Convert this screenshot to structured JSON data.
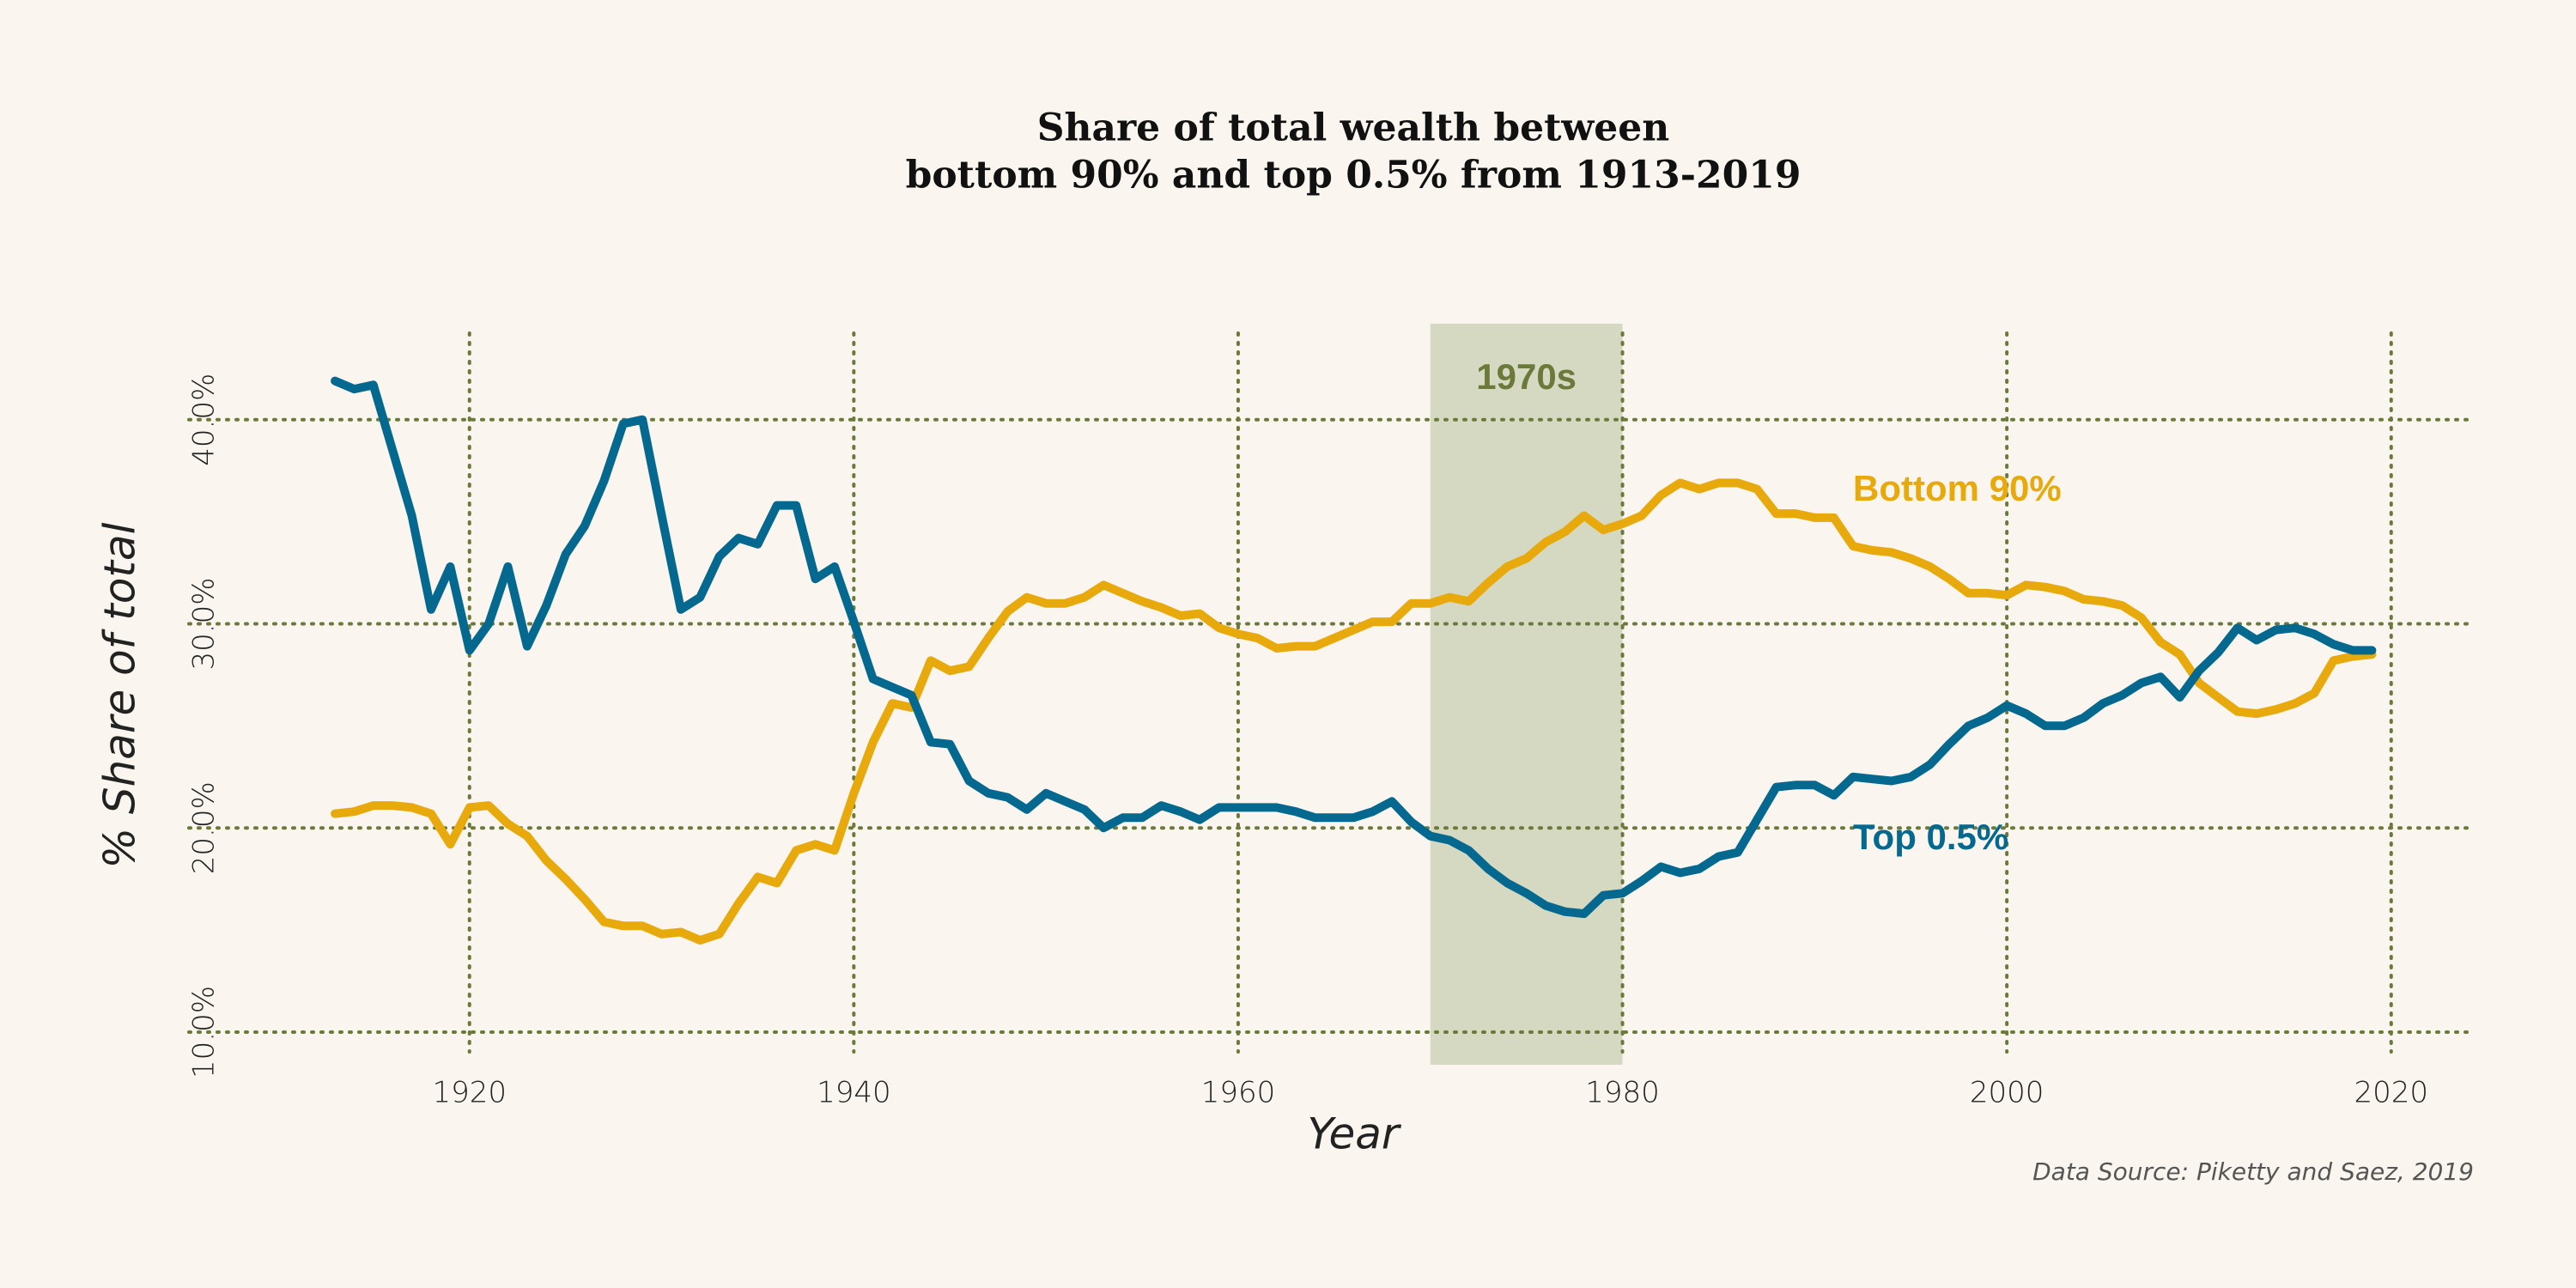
{
  "chart_data": {
    "type": "line",
    "title": [
      "Share of total wealth between",
      "bottom 90% and top 0.5% from 1913-2019"
    ],
    "y_label": "% Share of total",
    "x_label": "Year",
    "source": "Data Source: Piketty and Saez, 2019",
    "highlight": {
      "label": "1970s",
      "x": [
        1970,
        1980
      ],
      "color": "#d5d9c2"
    },
    "x": [
      1913,
      1914,
      1915,
      1916,
      1917,
      1918,
      1919,
      1920,
      1921,
      1922,
      1923,
      1924,
      1925,
      1926,
      1927,
      1928,
      1929,
      1930,
      1931,
      1932,
      1933,
      1934,
      1935,
      1936,
      1937,
      1938,
      1939,
      1940,
      1941,
      1942,
      1943,
      1944,
      1945,
      1946,
      1947,
      1948,
      1949,
      1950,
      1951,
      1952,
      1953,
      1954,
      1955,
      1956,
      1957,
      1958,
      1959,
      1960,
      1961,
      1962,
      1963,
      1964,
      1965,
      1966,
      1967,
      1968,
      1969,
      1970,
      1971,
      1972,
      1973,
      1974,
      1975,
      1976,
      1977,
      1978,
      1979,
      1980,
      1981,
      1982,
      1983,
      1984,
      1985,
      1986,
      1987,
      1988,
      1989,
      1990,
      1991,
      1992,
      1993,
      1994,
      1995,
      1996,
      1997,
      1998,
      1999,
      2000,
      2001,
      2002,
      2003,
      2004,
      2005,
      2006,
      2007,
      2008,
      2009,
      2010,
      2011,
      2012,
      2013,
      2014,
      2015,
      2016,
      2017,
      2018,
      2019
    ],
    "series": [
      {
        "name": "Bottom 90%",
        "color": "#e8a90c",
        "values": [
          20.7,
          20.8,
          21.1,
          21.1,
          21.0,
          20.7,
          19.2,
          21.0,
          21.1,
          20.2,
          19.6,
          18.4,
          17.5,
          16.5,
          15.4,
          15.2,
          15.2,
          14.8,
          14.9,
          14.5,
          14.8,
          16.3,
          17.6,
          17.3,
          18.9,
          19.2,
          18.9,
          21.7,
          24.2,
          26.1,
          25.9,
          28.2,
          27.7,
          27.9,
          29.3,
          30.6,
          31.3,
          31.0,
          31.0,
          31.3,
          31.9,
          31.5,
          31.1,
          30.8,
          30.4,
          30.5,
          29.8,
          29.5,
          29.3,
          28.8,
          28.9,
          28.9,
          29.3,
          29.7,
          30.1,
          30.1,
          31.0,
          31.0,
          31.3,
          31.1,
          32.0,
          32.8,
          33.2,
          34.0,
          34.5,
          35.3,
          34.6,
          34.9,
          35.3,
          36.3,
          36.9,
          36.6,
          36.9,
          36.9,
          36.6,
          35.4,
          35.4,
          35.2,
          35.2,
          33.8,
          33.6,
          33.5,
          33.2,
          32.8,
          32.2,
          31.5,
          31.5,
          31.4,
          31.9,
          31.8,
          31.6,
          31.2,
          31.1,
          30.9,
          30.3,
          29.1,
          28.5,
          27.1,
          26.4,
          25.7,
          25.6,
          25.8,
          26.1,
          26.6,
          28.2,
          28.4,
          28.5
        ]
      },
      {
        "name": "Top 0.5%",
        "color": "#05688f",
        "values": [
          41.9,
          41.5,
          41.7,
          38.5,
          35.3,
          30.7,
          32.8,
          28.7,
          30.0,
          32.8,
          28.9,
          30.9,
          33.4,
          34.8,
          37.0,
          39.8,
          40.0,
          35.3,
          30.7,
          31.3,
          33.3,
          34.2,
          33.9,
          35.8,
          35.8,
          32.2,
          32.8,
          30.1,
          27.3,
          26.9,
          26.5,
          24.2,
          24.1,
          22.3,
          21.7,
          21.5,
          20.9,
          21.7,
          21.3,
          20.9,
          20.0,
          20.5,
          20.5,
          21.1,
          20.8,
          20.4,
          21.0,
          21.0,
          21.0,
          21.0,
          20.8,
          20.5,
          20.5,
          20.5,
          20.8,
          21.3,
          20.3,
          19.6,
          19.4,
          18.9,
          18.0,
          17.3,
          16.8,
          16.2,
          15.9,
          15.8,
          16.7,
          16.8,
          17.4,
          18.1,
          17.8,
          18.0,
          18.6,
          18.8,
          20.4,
          22.0,
          22.1,
          22.1,
          21.6,
          22.5,
          22.4,
          22.3,
          22.5,
          23.1,
          24.1,
          25.0,
          25.4,
          26.0,
          25.6,
          25.0,
          25.0,
          25.4,
          26.1,
          26.5,
          27.1,
          27.4,
          26.4,
          27.7,
          28.6,
          29.8,
          29.2,
          29.7,
          29.8,
          29.5,
          29.0,
          28.7,
          28.7
        ]
      }
    ],
    "xlim": [
      1905.4,
      2024.3
    ],
    "ylim": [
      8.4,
      44.7
    ],
    "xticks": [
      1920,
      1940,
      1960,
      1980,
      2000,
      2020
    ],
    "yticks": [
      {
        "value": 10,
        "label": "10.0%"
      },
      {
        "value": 20,
        "label": "20.0%"
      },
      {
        "value": 30,
        "label": "30.0%"
      },
      {
        "value": 40,
        "label": "40.0%"
      }
    ],
    "grid": true,
    "grid_color": "#6b7a3a"
  }
}
